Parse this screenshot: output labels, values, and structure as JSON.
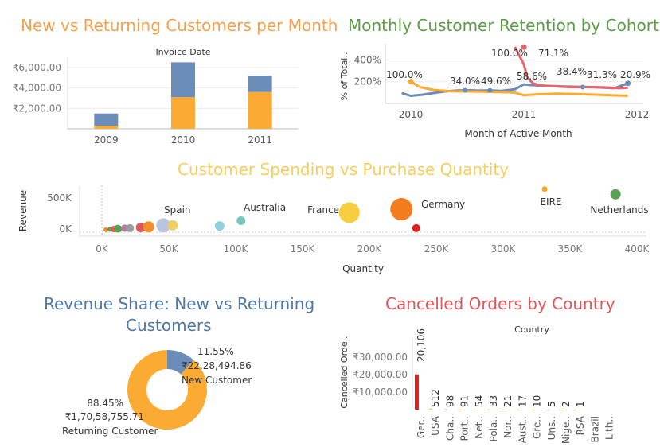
{
  "titles": {
    "new_vs_returning": "New vs Returning Customers per Month",
    "retention": "Monthly Customer Retention by Cohort",
    "spending": "Customer Spending vs Purchase Quantity",
    "revenue_share_line1": "Revenue Share: New vs Returning",
    "revenue_share_line2": "Customers",
    "cancelled": "Cancelled Orders by Country"
  },
  "colors": {
    "orange_title": "#f5a04a",
    "green_title": "#5a9c45",
    "yellow_title": "#f7ce5b",
    "blue_title": "#4e79a7",
    "red_title": "#e15759",
    "series_blue": "#6b8cb8",
    "series_orange": "#fbab33",
    "series_red": "#e8646a",
    "bar_red": "#e02020"
  },
  "chart_data": [
    {
      "type": "bar",
      "stacked": true,
      "title": "New vs Returning Customers per Month",
      "header": "Invoice Date",
      "categories": [
        "2009",
        "2010",
        "2011"
      ],
      "series": [
        {
          "values": [
            300,
            3100,
            3600
          ]
        },
        {
          "values": [
            1200,
            3400,
            1600
          ]
        }
      ],
      "ylim": [
        0,
        7000
      ],
      "yticks": [
        2000,
        4000,
        6000
      ],
      "ytick_labels": [
        "₹2,000.00",
        "₹4,000.00",
        "₹6,000.00"
      ],
      "grid": true
    },
    {
      "type": "line",
      "title": "Monthly Customer Retention by Cohort",
      "xlabel": "Month of Active Month",
      "ylabel": "% of Total..",
      "xticks": [
        "2010",
        "2011",
        "2012"
      ],
      "yticks": [
        200,
        400
      ],
      "ytick_labels": [
        "200%",
        "400%"
      ],
      "ylim": [
        0,
        550
      ],
      "labels": [
        "100.0%",
        "34.0%",
        "49.6%",
        "100.0%",
        "58.6%",
        "71.1%",
        "38.4%",
        "31.3%",
        "20.9%"
      ],
      "series": [
        {
          "x": [
            2009.92,
            2010.0,
            2010.1,
            2010.2,
            2010.3,
            2010.4,
            2010.5,
            2010.6,
            2010.7,
            2010.8,
            2010.92,
            2011.0,
            2011.05,
            2011.2,
            2011.4,
            2011.6,
            2011.8,
            2011.92
          ],
          "y": [
            95,
            70,
            80,
            95,
            110,
            118,
            122,
            118,
            120,
            115,
            130,
            175,
            170,
            160,
            155,
            150,
            140,
            185
          ]
        },
        {
          "x": [
            2010.0,
            2010.08,
            2010.2,
            2010.35,
            2010.5,
            2010.65,
            2010.8,
            2010.92,
            2011.0,
            2011.1,
            2011.3,
            2011.5,
            2011.7,
            2011.92
          ],
          "y": [
            200,
            150,
            125,
            112,
            110,
            108,
            105,
            100,
            75,
            82,
            90,
            85,
            78,
            70
          ]
        },
        {
          "x": [
            2010.92,
            2011.0,
            2011.03,
            2011.08,
            2011.15,
            2011.25,
            2011.4,
            2011.55,
            2011.7,
            2011.85,
            2011.92
          ],
          "y": [
            520,
            360,
            240,
            185,
            165,
            160,
            150,
            150,
            148,
            140,
            145
          ]
        }
      ]
    },
    {
      "type": "scatter",
      "title": "Customer Spending vs Purchase Quantity",
      "xlabel": "Quantity",
      "ylabel": "Revenue",
      "xlim": [
        -15000,
        410000
      ],
      "ylim": [
        -50000,
        700000
      ],
      "xticks": [
        0,
        50000,
        100000,
        150000,
        200000,
        250000,
        300000,
        350000,
        400000
      ],
      "xtick_labels": [
        "0K",
        "50K",
        "100K",
        "150K",
        "200K",
        "250K",
        "300K",
        "350K",
        "400K"
      ],
      "yticks": [
        0,
        500000
      ],
      "ytick_labels": [
        "0K",
        "500K"
      ],
      "points": [
        {
          "label": "",
          "x": 3000,
          "y": -10000,
          "size": 3,
          "color": "#f28e2b"
        },
        {
          "label": "",
          "x": 6000,
          "y": -5000,
          "size": 3,
          "color": "#59a14f"
        },
        {
          "label": "",
          "x": 9000,
          "y": 0,
          "size": 4,
          "color": "#e15759"
        },
        {
          "label": "",
          "x": 12000,
          "y": 5000,
          "size": 5,
          "color": "#59a14f"
        },
        {
          "label": "",
          "x": 17000,
          "y": 15000,
          "size": 4.5,
          "color": "#b07aa1"
        },
        {
          "label": "",
          "x": 21000,
          "y": 15000,
          "size": 5,
          "color": "#9c9c9c"
        },
        {
          "label": "",
          "x": 29000,
          "y": 25000,
          "size": 6,
          "color": "#e15759"
        },
        {
          "label": "",
          "x": 35000,
          "y": 35000,
          "size": 7,
          "color": "#f28e2b"
        },
        {
          "label": "Spain",
          "x": 46000,
          "y": 60000,
          "size": 9,
          "color": "#b9c4e0"
        },
        {
          "label": "",
          "x": 53000,
          "y": 60000,
          "size": 6.5,
          "color": "#f1ce63"
        },
        {
          "label": "",
          "x": 88000,
          "y": 50000,
          "size": 6,
          "color": "#8fd0e0"
        },
        {
          "label": "Australia",
          "x": 104000,
          "y": 135000,
          "size": 5.5,
          "color": "#76c7c0"
        },
        {
          "label": "France",
          "x": 185000,
          "y": 265000,
          "size": 13,
          "color": "#f7ce3e"
        },
        {
          "label": "Germany",
          "x": 224000,
          "y": 320000,
          "size": 14,
          "color": "#f47c1f"
        },
        {
          "label": "",
          "x": 235000,
          "y": 15000,
          "size": 5,
          "color": "#e02020"
        },
        {
          "label": "EIRE",
          "x": 331000,
          "y": 645000,
          "size": 3.5,
          "color": "#f5a623"
        },
        {
          "label": "Netherlands",
          "x": 384000,
          "y": 560000,
          "size": 6.5,
          "color": "#59a14f"
        }
      ]
    },
    {
      "type": "pie",
      "donut": true,
      "title": "Revenue Share: New vs Returning Customers",
      "slices": [
        {
          "name": "New Customer",
          "percent": 11.55,
          "value": "₹22,28,494.86",
          "color": "#6b8cb8"
        },
        {
          "name": "Returning Customer",
          "percent": 88.45,
          "value": "₹1,70,58,755.71",
          "color": "#fbab33"
        }
      ]
    },
    {
      "type": "bar",
      "title": "Cancelled Orders by Country",
      "header": "Country",
      "ylabel": "Cancelled Orde..",
      "categories": [
        "Ger..",
        "USA",
        "Cha..",
        "Port..",
        "Net..",
        "Pola..",
        "Nor..",
        "Aust..",
        "Gre..",
        "Uns..",
        "Nige..",
        "RSA",
        "Brazil",
        "Lith.."
      ],
      "values": [
        20106,
        512,
        98,
        91,
        54,
        33,
        21,
        17,
        10,
        5,
        2,
        1,
        0,
        0
      ],
      "value_labels": [
        "20,106",
        "512",
        "98",
        "91",
        "54",
        "33",
        "21",
        "17",
        "10",
        "5",
        "2",
        "1",
        "",
        ""
      ],
      "ylim": [
        0,
        36000
      ],
      "yticks": [
        10000,
        20000,
        30000
      ],
      "ytick_labels": [
        "₹10,000.00",
        "₹20,000.00",
        "₹30,000.00"
      ]
    }
  ]
}
